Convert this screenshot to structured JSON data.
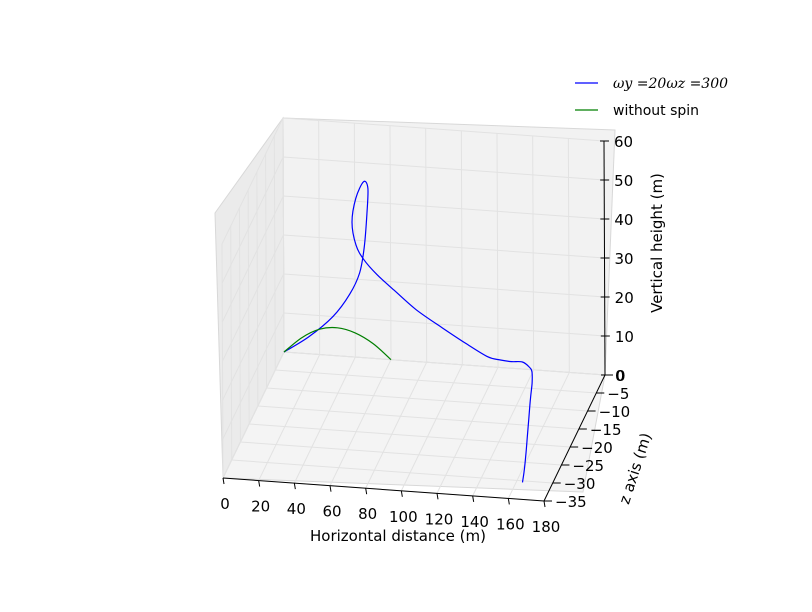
{
  "chart_data": {
    "type": "line",
    "projection": "3d",
    "xlabel": "Horizontal distance (m)",
    "ylabel": "z axis (m)",
    "zlabel": "Vertical height (m)",
    "xlim": [
      0,
      180
    ],
    "ylim": [
      -35,
      0
    ],
    "zlim": [
      0,
      60
    ],
    "xticks": [
      "0",
      "20",
      "40",
      "60",
      "80",
      "100",
      "120",
      "140",
      "160",
      "180"
    ],
    "yticks": [
      "0",
      "−5",
      "−10",
      "−15",
      "−20",
      "−25",
      "−30",
      "−35"
    ],
    "zticks": [
      "0",
      "10",
      "20",
      "30",
      "40",
      "50",
      "60"
    ],
    "grid": true,
    "legend_position": "top-right",
    "series": [
      {
        "name": "ωy =20ωz =300",
        "color": "#0000ff",
        "x": [
          0,
          14,
          28,
          38,
          44,
          47,
          49,
          50,
          48,
          44,
          42,
          44,
          48,
          55,
          64,
          76,
          90,
          103,
          115,
          122,
          128,
          134,
          139,
          142,
          145,
          148,
          152,
          156,
          160,
          163,
          165
        ],
        "y": [
          0,
          -0.2,
          -0.6,
          -1,
          -1.4,
          -1.8,
          -2.2,
          -2.6,
          -3,
          -3.4,
          -3.6,
          -3.4,
          -3,
          -2.6,
          -2.2,
          -1.8,
          -1.4,
          -1,
          -0.8,
          -0.6,
          -0.4,
          -0.3,
          -1.5,
          -3,
          -6,
          -10,
          -15,
          -20,
          -25,
          -29,
          -32
        ],
        "z": [
          0,
          4.5,
          10.5,
          17,
          23,
          30,
          39,
          46,
          48,
          44,
          38,
          32,
          28,
          24,
          20,
          15,
          10.5,
          6.5,
          3.3,
          2.5,
          2.1,
          2.1,
          2.1,
          2.3,
          2.3,
          2.2,
          2.0,
          1.8,
          1.6,
          1.5,
          1.5
        ]
      },
      {
        "name": "without spin",
        "color": "#007f00",
        "x": [
          0,
          10,
          20,
          30,
          40,
          50,
          60
        ],
        "y": [
          0,
          0,
          0,
          0,
          0,
          0,
          0
        ],
        "z": [
          0,
          4,
          6.5,
          7.2,
          6.2,
          3.8,
          0
        ]
      }
    ]
  }
}
